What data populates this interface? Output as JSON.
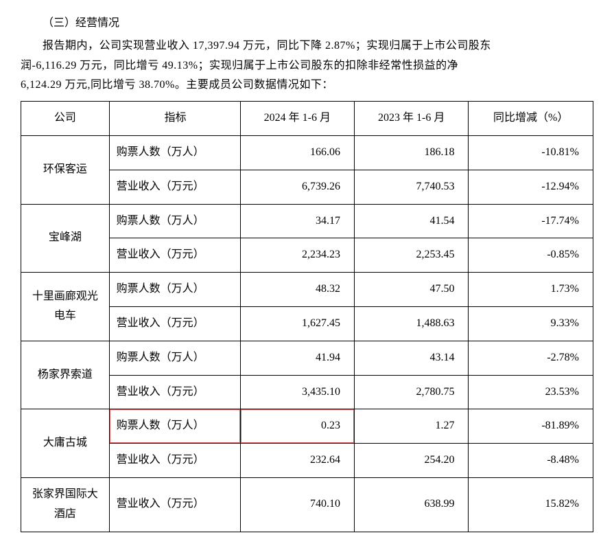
{
  "section_title": "（三）经营情况",
  "paragraph_lines": [
    "报告期内，公司实现营业收入 17,397.94 万元，同比下降 2.87%；实现归属于上市公司股东",
    "润-6,116.29 万元，同比增亏 49.13%；实现归属于上市公司股东的扣除非经常性损益的净",
    "6,124.29 万元,同比增亏 38.70%。主要成员公司数据情况如下："
  ],
  "table": {
    "headers": {
      "company": "公司",
      "metric": "指标",
      "y2024": "2024 年 1-6 月",
      "y2023": "2023 年 1-6 月",
      "change": "同比增减（%）"
    },
    "metric_labels": {
      "tickets": "购票人数（万人）",
      "revenue": "营业收入（万元）"
    },
    "companies": [
      {
        "name": "环保客运",
        "rows": [
          {
            "metric_key": "tickets",
            "y2024": "166.06",
            "y2023": "186.18",
            "change": "-10.81%"
          },
          {
            "metric_key": "revenue",
            "y2024": "6,739.26",
            "y2023": "7,740.53",
            "change": "-12.94%"
          }
        ]
      },
      {
        "name": "宝峰湖",
        "rows": [
          {
            "metric_key": "tickets",
            "y2024": "34.17",
            "y2023": "41.54",
            "change": "-17.74%"
          },
          {
            "metric_key": "revenue",
            "y2024": "2,234.23",
            "y2023": "2,253.45",
            "change": "-0.85%"
          }
        ]
      },
      {
        "name": "十里画廊观光电车",
        "rows": [
          {
            "metric_key": "tickets",
            "y2024": "48.32",
            "y2023": "47.50",
            "change": "1.73%"
          },
          {
            "metric_key": "revenue",
            "y2024": "1,627.45",
            "y2023": "1,488.63",
            "change": "9.33%"
          }
        ]
      },
      {
        "name": "杨家界索道",
        "rows": [
          {
            "metric_key": "tickets",
            "y2024": "41.94",
            "y2023": "43.14",
            "change": "-2.78%"
          },
          {
            "metric_key": "revenue",
            "y2024": "3,435.10",
            "y2023": "2,780.75",
            "change": "23.53%"
          }
        ]
      },
      {
        "name": "大庸古城",
        "rows": [
          {
            "metric_key": "tickets",
            "y2024": "0.23",
            "y2023": "1.27",
            "change": "-81.89%",
            "highlight": true
          },
          {
            "metric_key": "revenue",
            "y2024": "232.64",
            "y2023": "254.20",
            "change": "-8.48%"
          }
        ]
      },
      {
        "name": "张家界国际大酒店",
        "rows": [
          {
            "metric_key": "revenue",
            "y2024": "740.10",
            "y2023": "638.99",
            "change": "15.82%"
          }
        ]
      }
    ],
    "highlight_color": "#e06060"
  }
}
